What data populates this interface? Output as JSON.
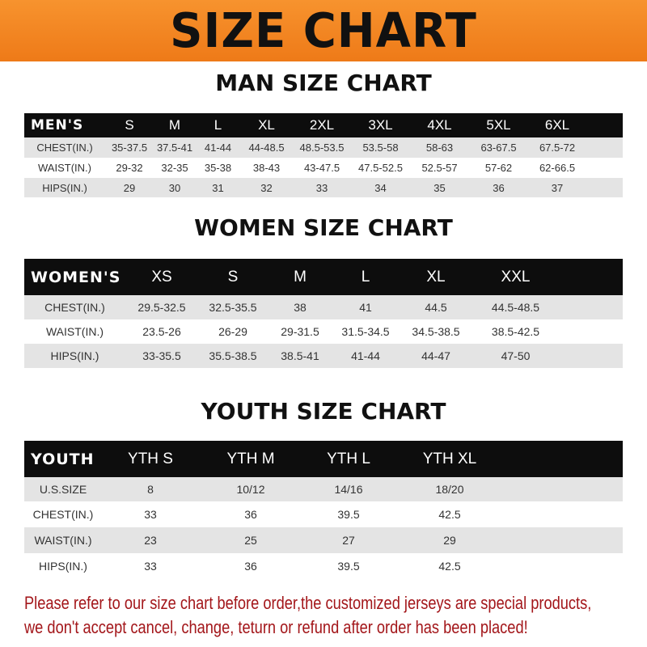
{
  "title": "SIZE CHART",
  "men": {
    "title": "MAN SIZE CHART",
    "header": [
      "MEN'S",
      "S",
      "M",
      "L",
      "XL",
      "2XL",
      "3XL",
      "4XL",
      "5XL",
      "6XL"
    ],
    "rows": [
      [
        "CHEST(IN.)",
        "35-37.5",
        "37.5-41",
        "41-44",
        "44-48.5",
        "48.5-53.5",
        "53.5-58",
        "58-63",
        "63-67.5",
        "67.5-72"
      ],
      [
        "WAIST(IN.)",
        "29-32",
        "32-35",
        "35-38",
        "38-43",
        "43-47.5",
        "47.5-52.5",
        "52.5-57",
        "57-62",
        "62-66.5"
      ],
      [
        "HIPS(IN.)",
        "29",
        "30",
        "31",
        "32",
        "33",
        "34",
        "35",
        "36",
        "37"
      ]
    ]
  },
  "women": {
    "title": "WOMEN SIZE CHART",
    "header": [
      "WOMEN'S",
      "XS",
      "S",
      "M",
      "L",
      "XL",
      "XXL"
    ],
    "rows": [
      [
        "CHEST(IN.)",
        "29.5-32.5",
        "32.5-35.5",
        "38",
        "41",
        "44.5",
        "44.5-48.5"
      ],
      [
        "WAIST(IN.)",
        "23.5-26",
        "26-29",
        "29-31.5",
        "31.5-34.5",
        "34.5-38.5",
        "38.5-42.5"
      ],
      [
        "HIPS(IN.)",
        "33-35.5",
        "35.5-38.5",
        "38.5-41",
        "41-44",
        "44-47",
        "47-50"
      ]
    ]
  },
  "youth": {
    "title": "YOUTH SIZE CHART",
    "header": [
      "YOUTH",
      "YTH S",
      "YTH M",
      "YTH L",
      "YTH XL"
    ],
    "rows": [
      [
        "U.S.SIZE",
        "8",
        "10/12",
        "14/16",
        "18/20"
      ],
      [
        "CHEST(IN.)",
        "33",
        "36",
        "39.5",
        "42.5"
      ],
      [
        "WAIST(IN.)",
        "23",
        "25",
        "27",
        "29"
      ],
      [
        "HIPS(IN.)",
        "33",
        "36",
        "39.5",
        "42.5"
      ]
    ]
  },
  "notice": [
    "Please refer to our size chart before order,the customized jerseys are special products,",
    "we don't accept cancel, change, teturn or refund after order has been placed!"
  ],
  "colors": {
    "banner": "#f07c1a",
    "header_row": "#0d0d0d",
    "stripe": "#e4e4e4",
    "notice": "#a3161a"
  }
}
